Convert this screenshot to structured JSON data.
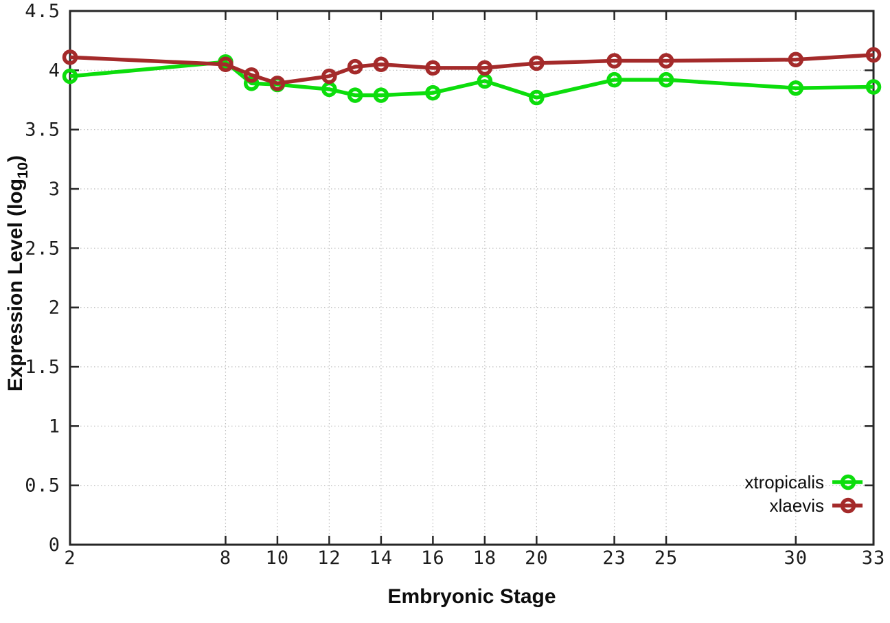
{
  "chart_data": {
    "type": "line",
    "title": "",
    "xlabel": "Embryonic Stage",
    "ylabel": "Expression Level (log10)",
    "ylabel_parts": {
      "prefix": "Expression Level (log",
      "subscript": "10",
      "suffix": ")"
    },
    "x": [
      2,
      8,
      9,
      10,
      12,
      13,
      14,
      16,
      18,
      20,
      23,
      25,
      30,
      33
    ],
    "xticks": [
      2,
      8,
      10,
      12,
      14,
      16,
      18,
      20,
      23,
      25,
      30,
      33
    ],
    "xtick_labels": [
      "2",
      "8",
      "10",
      "12",
      "14",
      "16",
      "18",
      "20",
      "23",
      "25",
      "30",
      "33"
    ],
    "yticks": [
      0,
      0.5,
      1,
      1.5,
      2,
      2.5,
      3,
      3.5,
      4,
      4.5
    ],
    "ytick_labels": [
      "0",
      "0.5",
      "1",
      "1.5",
      "2",
      "2.5",
      "3",
      "3.5",
      "4",
      "4.5"
    ],
    "xlim": [
      2,
      33
    ],
    "ylim": [
      0,
      4.5
    ],
    "grid": true,
    "legend_position": "inside-bottom-right",
    "series": [
      {
        "name": "xtropicalis",
        "color": "#0cdd0c",
        "values": [
          3.95,
          4.07,
          3.89,
          3.88,
          3.84,
          3.79,
          3.79,
          3.81,
          3.91,
          3.77,
          3.92,
          3.92,
          3.85,
          3.86
        ]
      },
      {
        "name": "xlaevis",
        "color": "#a42a2a",
        "values": [
          4.11,
          4.05,
          3.96,
          3.89,
          3.95,
          4.03,
          4.05,
          4.02,
          4.02,
          4.06,
          4.08,
          4.08,
          4.09,
          4.13
        ]
      }
    ]
  },
  "colors": {
    "background": "#ffffff",
    "border": "#262626",
    "grid": "#bdbdbd",
    "text": "#1c1c1c"
  }
}
